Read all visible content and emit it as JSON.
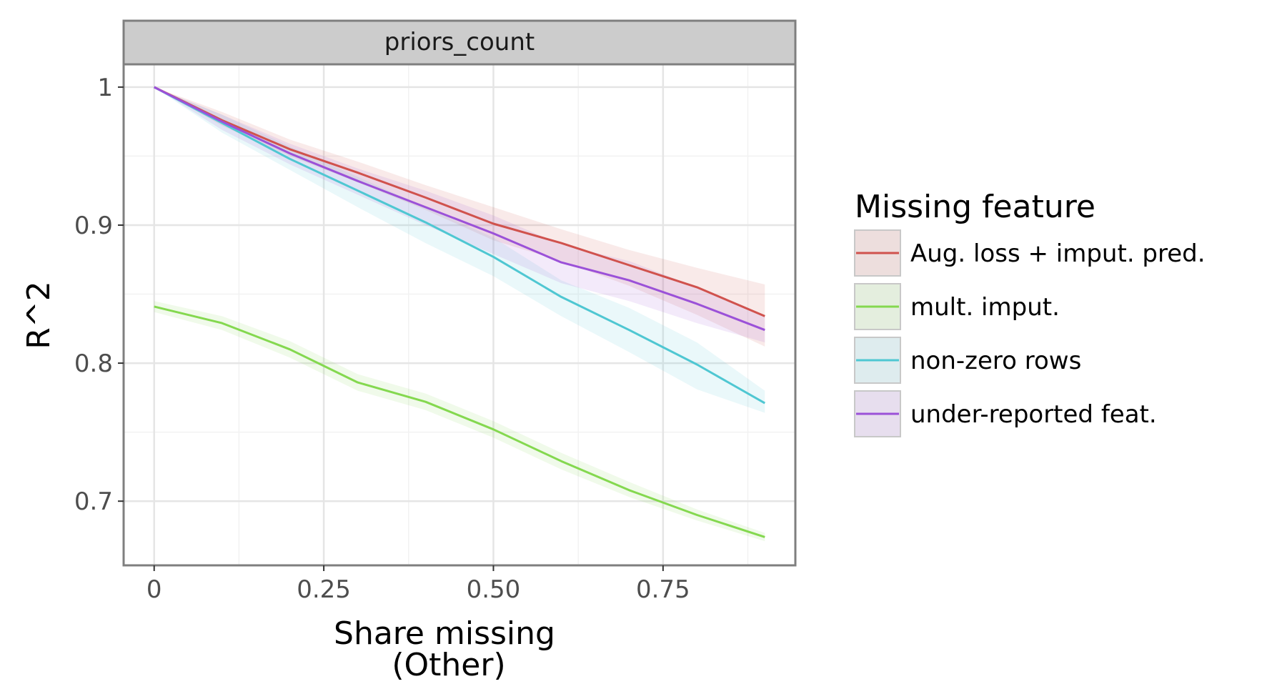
{
  "chart_data": {
    "type": "line",
    "facet_label": "priors_count",
    "xlabel_line1": "Share missing",
    "xlabel_line2": "(Other)",
    "ylabel": "R^2",
    "xlim": [
      -0.045,
      0.945
    ],
    "ylim": [
      0.6535,
      1.0165
    ],
    "x_ticks": [
      0,
      0.25,
      0.5,
      0.75
    ],
    "x_tick_labels": [
      "0",
      "0.25",
      "0.50",
      "0.75"
    ],
    "y_ticks": [
      0.7,
      0.8,
      0.9,
      1.0
    ],
    "y_tick_labels": [
      "0.7",
      "0.8",
      "0.9",
      "1"
    ],
    "grid": true,
    "legend_position": "right",
    "legend_title": "Missing feature",
    "series": [
      {
        "name": "Aug. loss + imput. pred.",
        "color": "#d0524d",
        "x": [
          0,
          0.1,
          0.2,
          0.3,
          0.4,
          0.5,
          0.6,
          0.7,
          0.8,
          0.9
        ],
        "y": [
          1.0,
          0.976,
          0.955,
          0.938,
          0.92,
          0.901,
          0.887,
          0.871,
          0.855,
          0.834
        ],
        "lower": [
          1.0,
          0.972,
          0.95,
          0.931,
          0.911,
          0.889,
          0.874,
          0.856,
          0.835,
          0.812
        ],
        "upper": [
          1.0,
          0.982,
          0.962,
          0.946,
          0.929,
          0.913,
          0.897,
          0.882,
          0.869,
          0.857
        ]
      },
      {
        "name": "mult. imput.",
        "color": "#84d84f",
        "x": [
          0,
          0.1,
          0.2,
          0.3,
          0.4,
          0.5,
          0.6,
          0.7,
          0.8,
          0.9
        ],
        "y": [
          0.841,
          0.829,
          0.81,
          0.786,
          0.772,
          0.752,
          0.729,
          0.708,
          0.69,
          0.674
        ],
        "lower": [
          0.837,
          0.824,
          0.804,
          0.78,
          0.766,
          0.746,
          0.723,
          0.703,
          0.686,
          0.671
        ],
        "upper": [
          0.845,
          0.834,
          0.816,
          0.792,
          0.778,
          0.758,
          0.735,
          0.714,
          0.694,
          0.677
        ]
      },
      {
        "name": "non-zero rows",
        "color": "#4fc7d2",
        "x": [
          0,
          0.1,
          0.2,
          0.3,
          0.4,
          0.5,
          0.6,
          0.7,
          0.8,
          0.9
        ],
        "y": [
          1.0,
          0.974,
          0.948,
          0.925,
          0.902,
          0.877,
          0.848,
          0.824,
          0.799,
          0.771
        ],
        "lower": [
          1.0,
          0.967,
          0.94,
          0.913,
          0.887,
          0.863,
          0.834,
          0.808,
          0.781,
          0.764
        ],
        "upper": [
          1.0,
          0.98,
          0.957,
          0.935,
          0.913,
          0.891,
          0.86,
          0.84,
          0.815,
          0.78
        ]
      },
      {
        "name": "under-reported feat.",
        "color": "#9b51d8",
        "x": [
          0,
          0.1,
          0.2,
          0.3,
          0.4,
          0.5,
          0.6,
          0.7,
          0.8,
          0.9
        ],
        "y": [
          1.0,
          0.975,
          0.952,
          0.932,
          0.913,
          0.894,
          0.873,
          0.86,
          0.843,
          0.824
        ],
        "lower": [
          1.0,
          0.969,
          0.944,
          0.922,
          0.9,
          0.879,
          0.858,
          0.845,
          0.829,
          0.815
        ],
        "upper": [
          1.0,
          0.98,
          0.959,
          0.941,
          0.925,
          0.907,
          0.886,
          0.874,
          0.855,
          0.834
        ]
      }
    ]
  }
}
